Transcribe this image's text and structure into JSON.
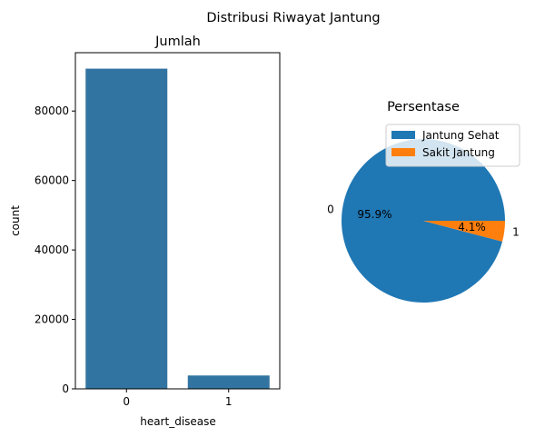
{
  "figure": {
    "suptitle": "Distribusi Riwayat Jantung"
  },
  "chart_data": [
    {
      "type": "bar",
      "title": "Jumlah",
      "xlabel": "heart_disease",
      "ylabel": "count",
      "categories": [
        "0",
        "1"
      ],
      "values": [
        92200,
        3850
      ],
      "ylim": [
        0,
        96800
      ],
      "yticks": [
        0,
        20000,
        40000,
        60000,
        80000
      ],
      "color": "#3274a1",
      "grid": false
    },
    {
      "type": "pie",
      "title": "Persentase",
      "slices": [
        {
          "label": "0",
          "legend": "Jantung Sehat",
          "value": 95.9,
          "pct_label": "95.9%",
          "color": "#1f77b4"
        },
        {
          "label": "1",
          "legend": "Sakit Jantung",
          "value": 4.1,
          "pct_label": "4.1%",
          "color": "#ff7f0e"
        }
      ],
      "legend_placement": "upper-right"
    }
  ]
}
